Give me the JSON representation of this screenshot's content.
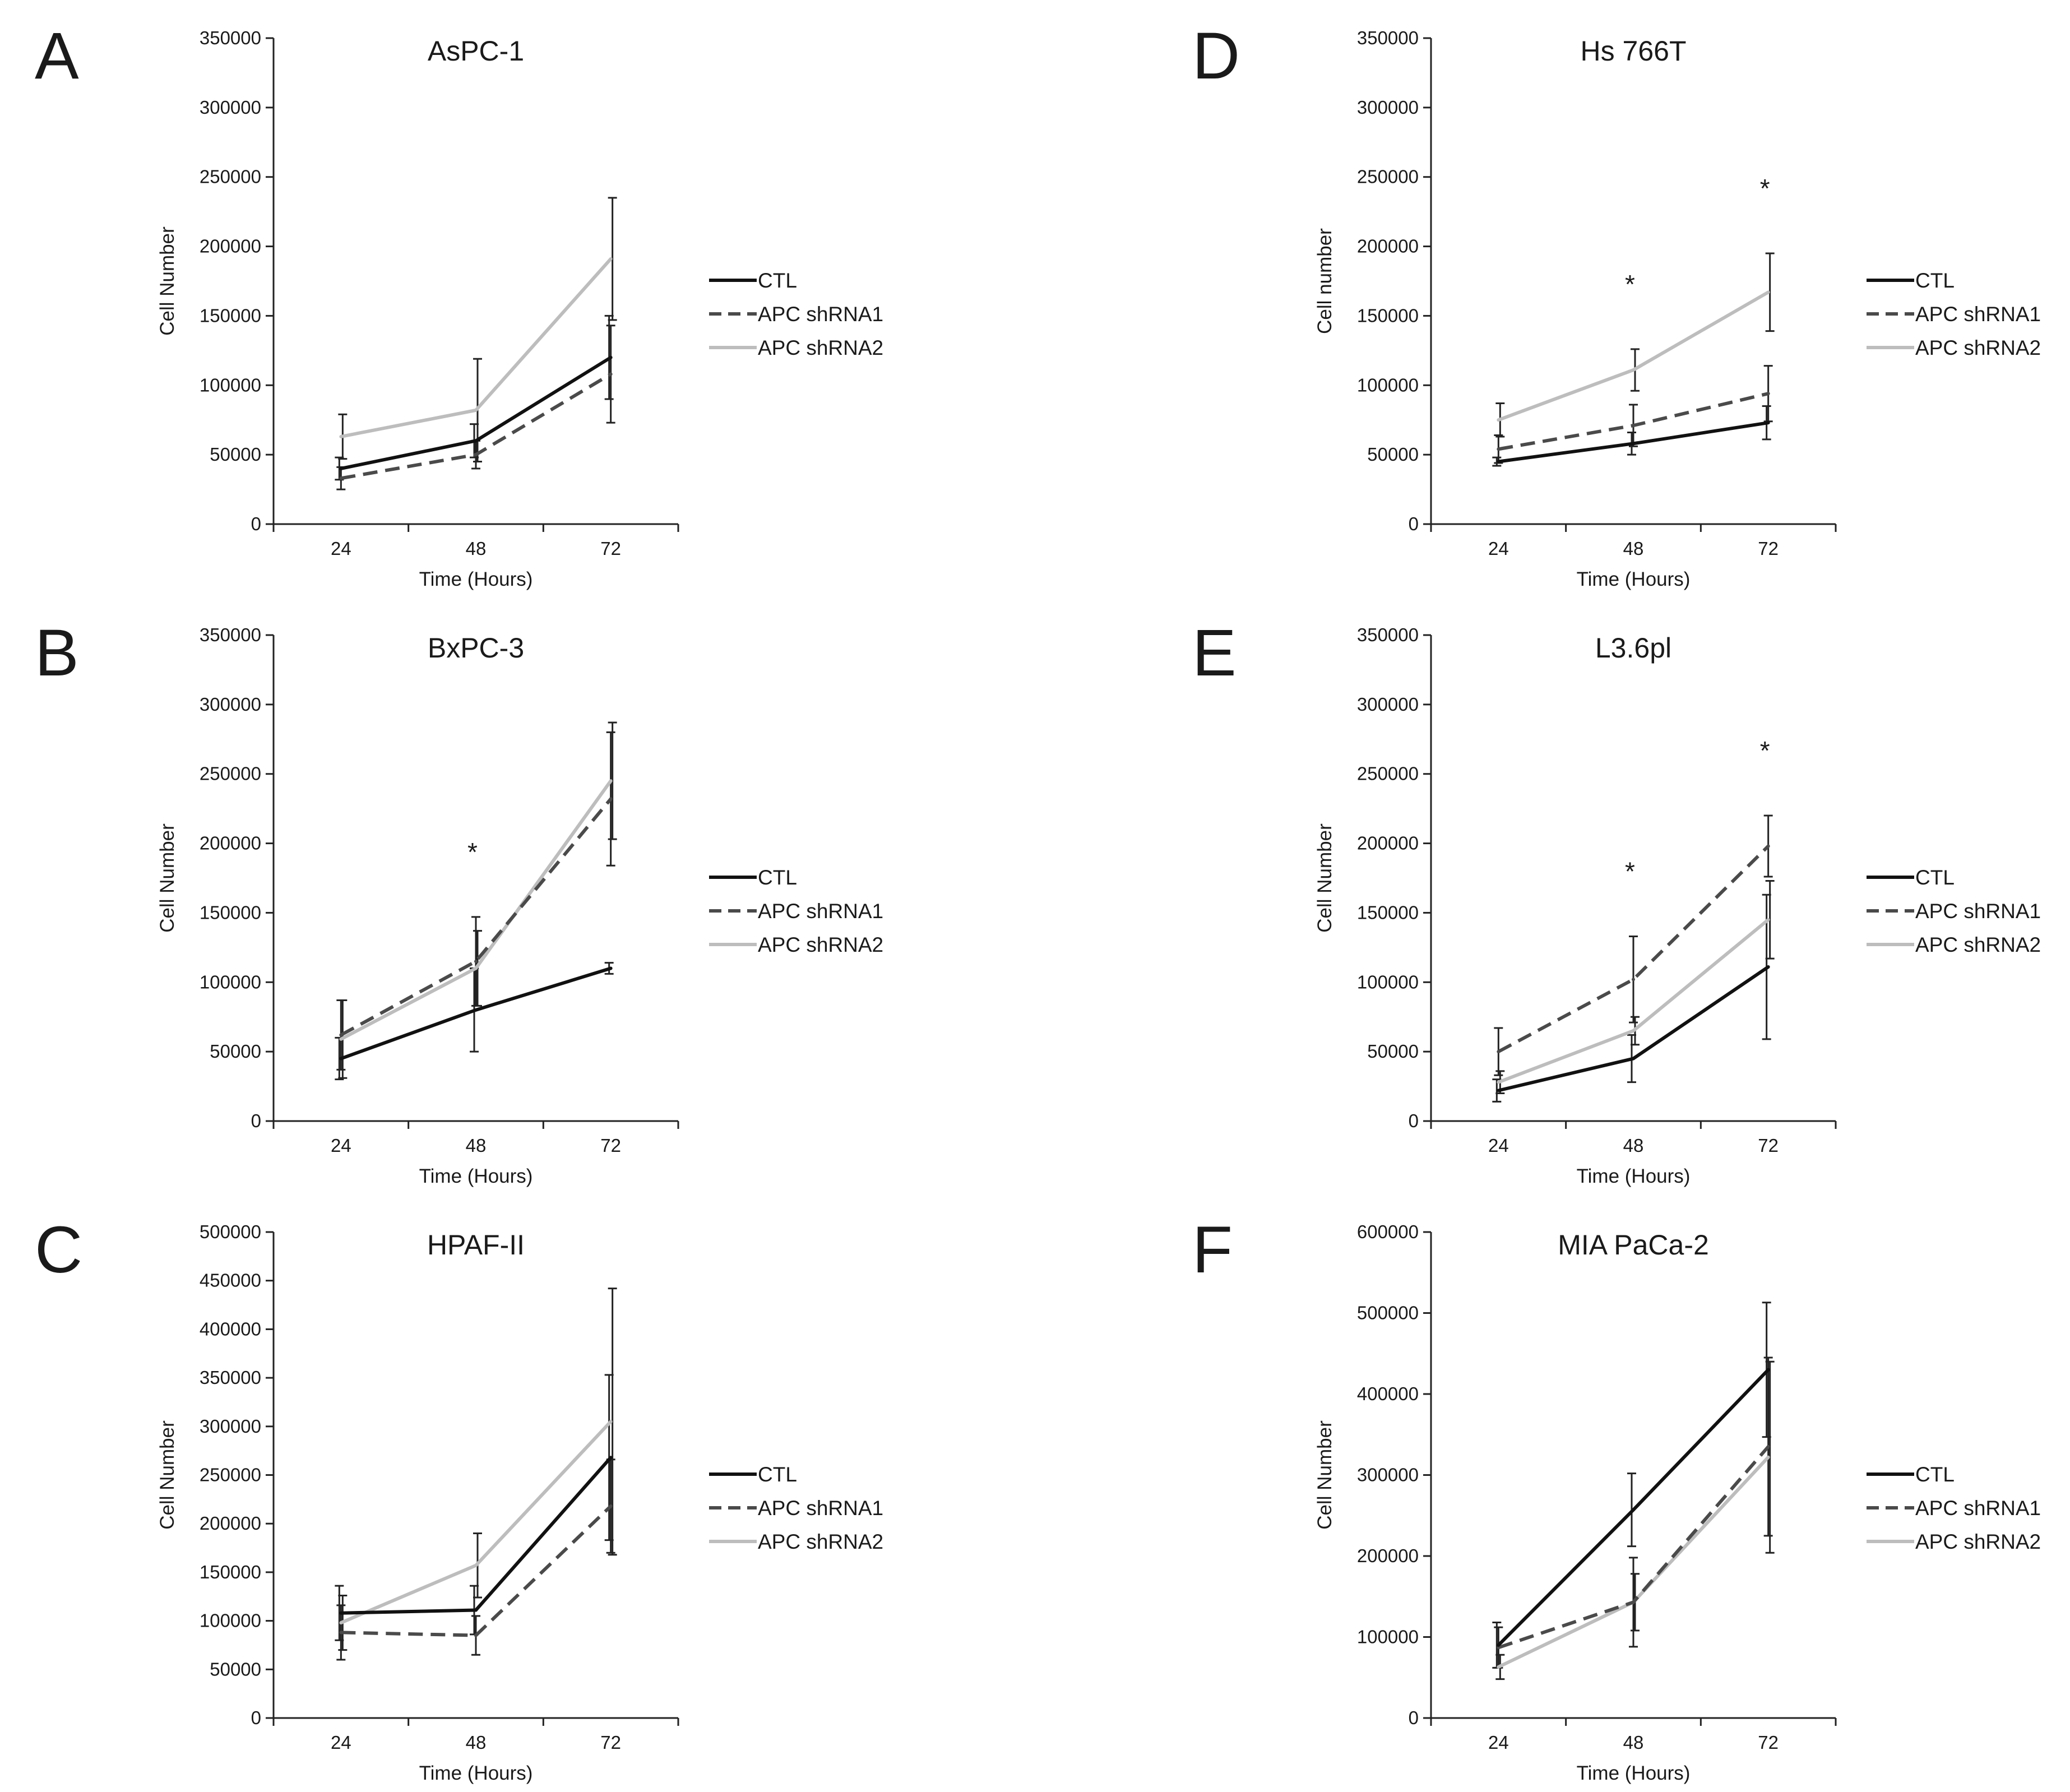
{
  "figure": {
    "series_styles": {
      "CTL": {
        "color": "#111111",
        "dash": "solid"
      },
      "APC shRNA1": {
        "color": "#4a4a4a",
        "dash": "dashed"
      },
      "APC shRNA2": {
        "color": "#bdbdbd",
        "dash": "solid"
      }
    }
  },
  "chart_data": [
    {
      "panel": "A",
      "type": "line",
      "title": "AsPC-1",
      "xlabel": "Time (Hours)",
      "ylabel": "Cell Number",
      "categories": [
        "24",
        "48",
        "72"
      ],
      "ylim": [
        0,
        350000
      ],
      "yticks": [
        "0",
        "50000",
        "100000",
        "150000",
        "200000",
        "250000",
        "300000",
        "350000"
      ],
      "legend": [
        "CTL",
        "APC shRNA1",
        "APC shRNA2"
      ],
      "series": [
        {
          "name": "CTL",
          "values": [
            40000,
            60000,
            120000
          ],
          "errors": [
            8000,
            12000,
            30000
          ]
        },
        {
          "name": "APC shRNA1",
          "values": [
            33000,
            50000,
            108000
          ],
          "errors": [
            8000,
            10000,
            35000
          ]
        },
        {
          "name": "APC shRNA2",
          "values": [
            63000,
            82000,
            191000
          ],
          "errors": [
            16000,
            37000,
            44000
          ]
        }
      ],
      "annotations": []
    },
    {
      "panel": "B",
      "type": "line",
      "title": "BxPC-3",
      "xlabel": "Time (Hours)",
      "ylabel": "Cell Number",
      "categories": [
        "24",
        "48",
        "72"
      ],
      "ylim": [
        0,
        350000
      ],
      "yticks": [
        "0",
        "50000",
        "100000",
        "150000",
        "200000",
        "250000",
        "300000",
        "350000"
      ],
      "legend": [
        "CTL",
        "APC shRNA1",
        "APC shRNA2"
      ],
      "series": [
        {
          "name": "CTL",
          "values": [
            45000,
            80000,
            110000
          ],
          "errors": [
            15000,
            30000,
            4000
          ]
        },
        {
          "name": "APC shRNA1",
          "values": [
            62000,
            115000,
            232000
          ],
          "errors": [
            25000,
            32000,
            48000
          ]
        },
        {
          "name": "APC shRNA2",
          "values": [
            59000,
            110000,
            245000
          ],
          "errors": [
            28000,
            27000,
            42000
          ]
        }
      ],
      "annotations": [
        {
          "text": "*",
          "at": "48"
        }
      ]
    },
    {
      "panel": "C",
      "type": "line",
      "title": "HPAF-II",
      "xlabel": "Time (Hours)",
      "ylabel": "Cell Number",
      "categories": [
        "24",
        "48",
        "72"
      ],
      "ylim": [
        0,
        500000
      ],
      "yticks": [
        "0",
        "50000",
        "100000",
        "150000",
        "200000",
        "250000",
        "300000",
        "350000",
        "400000",
        "450000",
        "500000"
      ],
      "legend": [
        "CTL",
        "APC shRNA1",
        "APC shRNA2"
      ],
      "series": [
        {
          "name": "CTL",
          "values": [
            108000,
            111000,
            268000
          ],
          "errors": [
            28000,
            25000,
            85000
          ]
        },
        {
          "name": "APC shRNA1",
          "values": [
            88000,
            85000,
            218000
          ],
          "errors": [
            28000,
            20000,
            48000
          ]
        },
        {
          "name": "APC shRNA2",
          "values": [
            98000,
            157000,
            305000
          ],
          "errors": [
            28000,
            33000,
            137000
          ]
        }
      ],
      "annotations": []
    },
    {
      "panel": "D",
      "type": "line",
      "title": "Hs 766T",
      "xlabel": "Time (Hours)",
      "ylabel": "Cell number",
      "categories": [
        "24",
        "48",
        "72"
      ],
      "ylim": [
        0,
        350000
      ],
      "yticks": [
        "0",
        "50000",
        "100000",
        "150000",
        "200000",
        "250000",
        "300000",
        "350000"
      ],
      "legend": [
        "CTL",
        "APC shRNA1",
        "APC shRNA2"
      ],
      "series": [
        {
          "name": "CTL",
          "values": [
            45000,
            58000,
            73000
          ],
          "errors": [
            3000,
            8000,
            12000
          ]
        },
        {
          "name": "APC shRNA1",
          "values": [
            54000,
            71000,
            94000
          ],
          "errors": [
            10000,
            15000,
            20000
          ]
        },
        {
          "name": "APC shRNA2",
          "values": [
            75000,
            111000,
            167000
          ],
          "errors": [
            12000,
            15000,
            28000
          ]
        }
      ],
      "annotations": [
        {
          "text": "*",
          "at": "48"
        },
        {
          "text": "*",
          "at": "72"
        }
      ]
    },
    {
      "panel": "E",
      "type": "line",
      "title": "L3.6pl",
      "xlabel": "Time (Hours)",
      "ylabel": "Cell Number",
      "categories": [
        "24",
        "48",
        "72"
      ],
      "ylim": [
        0,
        350000
      ],
      "yticks": [
        "0",
        "50000",
        "100000",
        "150000",
        "200000",
        "250000",
        "300000",
        "350000"
      ],
      "legend": [
        "CTL",
        "APC shRNA1",
        "APC shRNA2"
      ],
      "series": [
        {
          "name": "CTL",
          "values": [
            22000,
            45000,
            111000
          ],
          "errors": [
            8000,
            17000,
            52000
          ]
        },
        {
          "name": "APC shRNA1",
          "values": [
            50000,
            102000,
            198000
          ],
          "errors": [
            17000,
            31000,
            22000
          ]
        },
        {
          "name": "APC shRNA2",
          "values": [
            28000,
            65000,
            145000
          ],
          "errors": [
            8000,
            10000,
            28000
          ]
        }
      ],
      "annotations": [
        {
          "text": "*",
          "at": "48"
        },
        {
          "text": "*",
          "at": "72"
        }
      ]
    },
    {
      "panel": "F",
      "type": "line",
      "title": "MIA PaCa-2",
      "xlabel": "Time (Hours)",
      "ylabel": "Cell Number",
      "categories": [
        "24",
        "48",
        "72"
      ],
      "ylim": [
        0,
        600000
      ],
      "yticks": [
        "0",
        "100000",
        "200000",
        "300000",
        "400000",
        "500000",
        "600000"
      ],
      "legend": [
        "CTL",
        "APC shRNA1",
        "APC shRNA2"
      ],
      "series": [
        {
          "name": "CTL",
          "values": [
            90000,
            257000,
            430000
          ],
          "errors": [
            28000,
            45000,
            83000
          ]
        },
        {
          "name": "APC shRNA1",
          "values": [
            87000,
            143000,
            335000
          ],
          "errors": [
            25000,
            55000,
            110000
          ]
        },
        {
          "name": "APC shRNA2",
          "values": [
            63000,
            143000,
            322000
          ],
          "errors": [
            15000,
            35000,
            118000
          ]
        }
      ],
      "annotations": []
    }
  ]
}
